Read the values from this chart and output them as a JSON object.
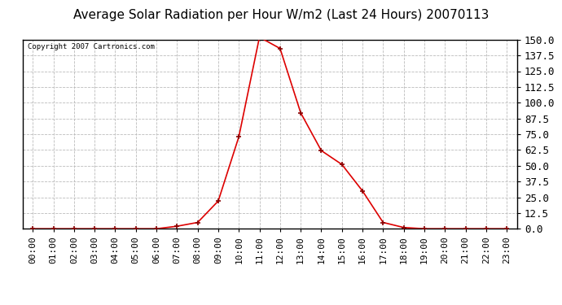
{
  "title": "Average Solar Radiation per Hour W/m2 (Last 24 Hours) 20070113",
  "copyright": "Copyright 2007 Cartronics.com",
  "hours": [
    "00:00",
    "01:00",
    "02:00",
    "03:00",
    "04:00",
    "05:00",
    "06:00",
    "07:00",
    "08:00",
    "09:00",
    "10:00",
    "11:00",
    "12:00",
    "13:00",
    "14:00",
    "15:00",
    "16:00",
    "17:00",
    "18:00",
    "19:00",
    "20:00",
    "21:00",
    "22:00",
    "23:00"
  ],
  "values": [
    0,
    0,
    0,
    0,
    0,
    0,
    0,
    2,
    5,
    22,
    73,
    152,
    143,
    92,
    62,
    51,
    30,
    5,
    1,
    0,
    0,
    0,
    0,
    0
  ],
  "line_color": "#dd0000",
  "marker_color": "#880000",
  "bg_color": "#ffffff",
  "plot_bg_color": "#ffffff",
  "grid_color": "#bbbbbb",
  "border_color": "#000000",
  "title_fontsize": 11,
  "copyright_fontsize": 6.5,
  "tick_fontsize": 8,
  "ytick_fontsize": 9,
  "ylim_min": 0,
  "ylim_max": 150,
  "yticks": [
    0.0,
    12.5,
    25.0,
    37.5,
    50.0,
    62.5,
    75.0,
    87.5,
    100.0,
    112.5,
    125.0,
    137.5,
    150.0
  ]
}
